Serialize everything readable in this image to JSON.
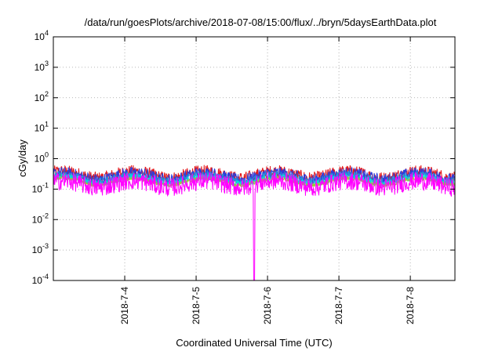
{
  "chart_data": {
    "type": "line",
    "title": "/data/run/goesPlots/archive/2018-07-08/15:00/flux/../bryn/5daysEarthData.plot",
    "xlabel": "Coordinated Universal Time (UTC)",
    "ylabel": "cGy/day",
    "yscale": "log",
    "ylim": [
      0.0001,
      10000
    ],
    "xlim": [
      "2018-07-03T00:00",
      "2018-07-08T15:00"
    ],
    "y_ticks": [
      {
        "value": 0.0001,
        "base": "10",
        "exp": "-4"
      },
      {
        "value": 0.001,
        "base": "10",
        "exp": "-3"
      },
      {
        "value": 0.01,
        "base": "10",
        "exp": "-2"
      },
      {
        "value": 0.1,
        "base": "10",
        "exp": "-1"
      },
      {
        "value": 1,
        "base": "10",
        "exp": "0"
      },
      {
        "value": 10,
        "base": "10",
        "exp": "1"
      },
      {
        "value": 100,
        "base": "10",
        "exp": "2"
      },
      {
        "value": 1000,
        "base": "10",
        "exp": "3"
      },
      {
        "value": 10000,
        "base": "10",
        "exp": "4"
      }
    ],
    "x_ticks": [
      {
        "value": "2018-07-04T00:00",
        "label": "2018-7-4"
      },
      {
        "value": "2018-07-05T00:00",
        "label": "2018-7-5"
      },
      {
        "value": "2018-07-06T00:00",
        "label": "2018-7-6"
      },
      {
        "value": "2018-07-07T00:00",
        "label": "2018-7-7"
      },
      {
        "value": "2018-07-08T00:00",
        "label": "2018-7-8"
      }
    ],
    "grid": true,
    "dropout": {
      "x": "2018-07-05T19:30",
      "min_y": 0.0001
    },
    "series": [
      {
        "color": "#e41a1c",
        "base": 0.3,
        "spread": 0.22
      },
      {
        "color": "#2c3edc",
        "base": 0.27,
        "spread": 0.2
      },
      {
        "color": "#2a8fd8",
        "base": 0.23,
        "spread": 0.14
      },
      {
        "color": "#00e0e0",
        "base": 0.2,
        "spread": 0.1
      },
      {
        "color": "#9acd32",
        "base": 0.18,
        "spread": 0.06
      },
      {
        "color": "#ff00ff",
        "base": 0.15,
        "spread": 0.3
      }
    ]
  }
}
